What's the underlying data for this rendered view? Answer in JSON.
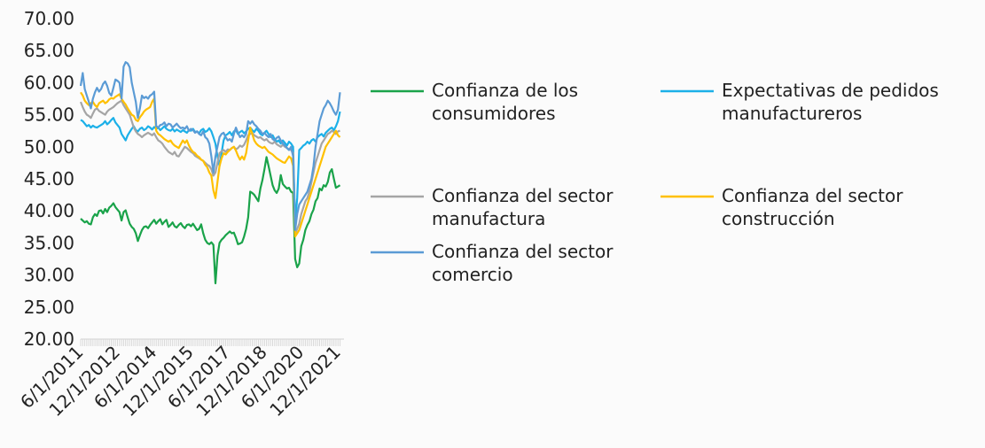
{
  "chart_data": {
    "type": "line",
    "categories": [
      "6/1/2011",
      null,
      null,
      null,
      null,
      null,
      null,
      null,
      null,
      null,
      null,
      null,
      null,
      null,
      null,
      null,
      null,
      null,
      "12/1/2012",
      null,
      null,
      null,
      null,
      null,
      null,
      null,
      null,
      null,
      null,
      null,
      null,
      null,
      null,
      null,
      null,
      null,
      "6/1/2014",
      null,
      null,
      null,
      null,
      null,
      null,
      null,
      null,
      null,
      null,
      null,
      null,
      null,
      null,
      null,
      null,
      null,
      "12/1/2015",
      null,
      null,
      null,
      null,
      null,
      null,
      null,
      null,
      null,
      null,
      null,
      null,
      null,
      null,
      null,
      null,
      null,
      "6/1/2017",
      null,
      null,
      null,
      null,
      null,
      null,
      null,
      null,
      null,
      null,
      null,
      null,
      null,
      null,
      null,
      null,
      null,
      "12/1/2018",
      null,
      null,
      null,
      null,
      null,
      null,
      null,
      null,
      null,
      null,
      null,
      null,
      null,
      null,
      null,
      null,
      null,
      "6/1/2020",
      null,
      null,
      null,
      null,
      null,
      null,
      null,
      null,
      null,
      null,
      null,
      null,
      null,
      null,
      null,
      null,
      null,
      "12/1/2021",
      null
    ],
    "ylim": [
      20,
      70
    ],
    "yticks": [
      {
        "value": 20,
        "label": "20.00"
      },
      {
        "value": 25,
        "label": "25.00"
      },
      {
        "value": 30,
        "label": "30.00"
      },
      {
        "value": 35,
        "label": "35.00"
      },
      {
        "value": 40,
        "label": "40.00"
      },
      {
        "value": 45,
        "label": "45.00"
      },
      {
        "value": 50,
        "label": "50.00"
      },
      {
        "value": 55,
        "label": "55.00"
      },
      {
        "value": 60,
        "label": "60.00"
      },
      {
        "value": 65,
        "label": "65.00"
      },
      {
        "value": 70,
        "label": "70.00"
      }
    ],
    "series": [
      {
        "name": "Confianza de los consumidores",
        "color": "#1aa34a",
        "values": [
          38.8,
          38.5,
          38.2,
          38.4,
          38.0,
          37.9,
          39.0,
          39.5,
          39.2,
          40.0,
          40.1,
          39.6,
          40.3,
          39.8,
          40.5,
          40.8,
          41.2,
          40.6,
          40.2,
          39.8,
          38.5,
          39.8,
          40.1,
          39.0,
          38.0,
          37.5,
          37.2,
          36.5,
          35.3,
          36.2,
          37.0,
          37.5,
          37.6,
          37.3,
          37.8,
          38.2,
          38.6,
          38.0,
          38.4,
          38.7,
          37.9,
          38.3,
          38.6,
          37.5,
          37.8,
          38.2,
          37.6,
          37.4,
          37.8,
          38.1,
          37.6,
          37.3,
          37.8,
          37.9,
          37.6,
          38.0,
          37.5,
          37.0,
          37.2,
          37.9,
          36.5,
          35.5,
          35.0,
          34.8,
          35.1,
          34.7,
          28.7,
          33.0,
          35.0,
          35.5,
          35.8,
          36.2,
          36.5,
          36.8,
          36.5,
          36.6,
          35.8,
          34.8,
          34.9,
          35.1,
          36.0,
          37.2,
          39.0,
          43.0,
          42.8,
          42.5,
          42.0,
          41.5,
          43.5,
          44.8,
          46.5,
          48.4,
          47.0,
          45.5,
          44.0,
          43.2,
          42.8,
          43.5,
          45.6,
          44.2,
          43.8,
          43.5,
          43.6,
          43.0,
          42.8,
          32.5,
          31.2,
          31.8,
          34.5,
          35.5,
          37.0,
          37.8,
          38.4,
          39.5,
          40.2,
          41.5,
          42.0,
          43.5,
          43.2,
          44.0,
          43.8,
          44.5,
          46.0,
          46.5,
          45.0,
          43.6,
          43.8,
          44.0
        ]
      },
      {
        "name": "Expectativas de pedidos manufactureros",
        "color": "#1cb0e8",
        "values": [
          54.2,
          54.0,
          53.6,
          53.2,
          53.4,
          53.0,
          53.3,
          53.1,
          53.0,
          53.2,
          53.4,
          53.6,
          54.0,
          53.5,
          53.8,
          54.2,
          54.5,
          53.8,
          53.4,
          53.0,
          52.0,
          51.5,
          51.0,
          51.8,
          52.3,
          52.8,
          53.2,
          52.6,
          52.4,
          52.8,
          53.0,
          52.6,
          52.8,
          53.2,
          53.0,
          52.7,
          53.1,
          52.8,
          53.0,
          52.6,
          52.9,
          53.2,
          52.8,
          52.6,
          52.5,
          52.8,
          52.4,
          52.7,
          52.5,
          52.3,
          52.6,
          52.4,
          52.2,
          52.6,
          52.5,
          52.8,
          52.3,
          52.4,
          52.1,
          52.6,
          52.8,
          52.3,
          52.5,
          52.9,
          52.4,
          51.5,
          50.5,
          48.5,
          47.0,
          49.0,
          51.0,
          51.8,
          52.0,
          52.3,
          51.8,
          52.4,
          52.6,
          52.0,
          52.3,
          52.5,
          52.1,
          52.4,
          52.8,
          53.0,
          52.6,
          52.3,
          52.8,
          52.5,
          52.0,
          51.8,
          52.2,
          52.5,
          52.0,
          51.5,
          51.8,
          51.2,
          50.8,
          51.0,
          50.5,
          51.0,
          50.6,
          50.2,
          50.8,
          50.5,
          50.0,
          38.0,
          42.0,
          49.5,
          49.8,
          50.2,
          50.4,
          50.8,
          50.5,
          51.0,
          51.2,
          50.8,
          51.5,
          51.8,
          52.0,
          51.6,
          52.2,
          52.5,
          52.8,
          53.0,
          52.6,
          53.2,
          54.0,
          55.5
        ]
      },
      {
        "name": "Confianza del sector manufactura",
        "color": "#a5a5a5",
        "values": [
          57.0,
          56.2,
          55.5,
          55.0,
          54.8,
          54.5,
          55.2,
          55.8,
          56.0,
          55.6,
          55.4,
          55.2,
          55.0,
          55.5,
          55.8,
          56.0,
          56.2,
          56.5,
          56.8,
          57.0,
          57.2,
          56.5,
          56.0,
          55.5,
          55.0,
          54.0,
          53.0,
          52.4,
          52.0,
          51.8,
          51.5,
          51.8,
          52.0,
          52.2,
          52.0,
          51.8,
          52.1,
          51.5,
          51.0,
          50.8,
          50.5,
          50.0,
          49.6,
          49.2,
          49.0,
          48.8,
          49.2,
          48.6,
          48.5,
          49.0,
          49.5,
          50.0,
          49.8,
          49.5,
          49.2,
          49.0,
          48.6,
          48.4,
          48.2,
          48.0,
          47.8,
          47.5,
          47.2,
          47.0,
          46.5,
          45.5,
          46.0,
          47.5,
          49.0,
          49.3,
          49.5,
          49.2,
          49.6,
          49.5,
          49.8,
          50.0,
          49.6,
          49.8,
          50.2,
          50.0,
          50.3,
          51.0,
          51.8,
          52.0,
          52.2,
          51.8,
          51.6,
          51.4,
          51.5,
          51.2,
          51.0,
          51.2,
          50.8,
          50.6,
          50.5,
          50.8,
          50.4,
          50.2,
          50.0,
          50.3,
          50.0,
          49.8,
          49.6,
          49.5,
          49.0,
          36.5,
          37.2,
          38.0,
          39.5,
          40.5,
          41.5,
          42.0,
          43.0,
          44.5,
          46.0,
          47.5,
          48.5,
          49.5,
          50.5,
          51.0,
          51.5,
          52.0,
          52.2,
          52.5,
          52.3,
          52.0,
          52.4,
          52.5
        ]
      },
      {
        "name": "Confianza del sector construcción",
        "color": "#ffc000",
        "values": [
          58.5,
          58.0,
          57.2,
          56.8,
          56.5,
          56.8,
          57.0,
          56.5,
          56.2,
          56.8,
          57.0,
          57.2,
          56.8,
          57.0,
          57.4,
          57.6,
          57.5,
          57.8,
          58.0,
          58.2,
          57.5,
          57.0,
          56.6,
          56.0,
          55.5,
          55.0,
          54.8,
          54.2,
          54.0,
          54.6,
          55.0,
          55.5,
          55.8,
          56.0,
          56.2,
          57.0,
          57.5,
          52.5,
          52.0,
          51.8,
          51.5,
          51.2,
          51.0,
          50.8,
          51.0,
          50.5,
          50.2,
          50.0,
          49.8,
          50.4,
          51.0,
          50.6,
          51.0,
          50.2,
          49.6,
          49.2,
          49.0,
          48.6,
          48.4,
          48.0,
          47.8,
          47.2,
          46.8,
          46.0,
          45.5,
          43.2,
          42.0,
          44.5,
          47.0,
          48.2,
          49.0,
          48.8,
          49.2,
          49.5,
          49.8,
          50.0,
          49.4,
          48.6,
          48.0,
          48.5,
          48.0,
          49.0,
          51.0,
          53.0,
          52.0,
          51.0,
          50.5,
          50.2,
          50.0,
          49.8,
          50.0,
          49.6,
          49.2,
          49.0,
          48.8,
          48.5,
          48.2,
          48.0,
          47.8,
          47.6,
          47.5,
          48.0,
          48.5,
          48.2,
          47.0,
          36.0,
          36.5,
          37.0,
          38.0,
          39.0,
          40.0,
          41.0,
          42.0,
          43.0,
          44.0,
          45.0,
          46.0,
          47.0,
          48.0,
          49.0,
          50.0,
          50.5,
          51.0,
          51.5,
          52.0,
          52.5,
          51.8,
          51.5
        ]
      },
      {
        "name": "Confianza del sector comercio",
        "color": "#5b9bd5",
        "values": [
          59.5,
          61.5,
          59.0,
          58.0,
          57.0,
          56.0,
          57.5,
          58.5,
          59.2,
          58.6,
          59.0,
          59.8,
          60.2,
          59.5,
          58.4,
          58.0,
          59.2,
          60.5,
          60.3,
          60.0,
          57.5,
          62.5,
          63.2,
          63.0,
          62.4,
          60.0,
          58.5,
          57.0,
          54.5,
          56.0,
          58.0,
          57.6,
          57.8,
          57.5,
          58.0,
          58.2,
          58.6,
          53.2,
          53.0,
          53.4,
          53.5,
          53.8,
          53.2,
          53.6,
          53.5,
          53.0,
          53.3,
          53.6,
          53.2,
          52.9,
          53.0,
          52.8,
          53.2,
          52.5,
          52.8,
          52.6,
          52.2,
          52.4,
          52.0,
          51.8,
          52.4,
          51.5,
          51.2,
          50.5,
          48.5,
          46.0,
          48.5,
          50.0,
          51.5,
          52.0,
          52.2,
          51.5,
          51.0,
          51.2,
          50.8,
          52.0,
          53.0,
          52.2,
          51.5,
          51.8,
          51.5,
          52.0,
          54.0,
          53.6,
          54.0,
          53.5,
          53.2,
          52.8,
          52.5,
          52.0,
          52.2,
          51.8,
          51.5,
          52.0,
          51.2,
          51.0,
          51.4,
          51.6,
          51.0,
          50.5,
          50.2,
          49.8,
          49.5,
          50.0,
          48.5,
          37.0,
          39.5,
          41.0,
          41.5,
          42.0,
          42.5,
          43.0,
          44.0,
          45.0,
          47.0,
          50.0,
          52.0,
          54.0,
          55.0,
          56.0,
          56.5,
          57.2,
          56.8,
          56.2,
          55.5,
          55.0,
          55.8,
          58.5
        ]
      }
    ]
  }
}
